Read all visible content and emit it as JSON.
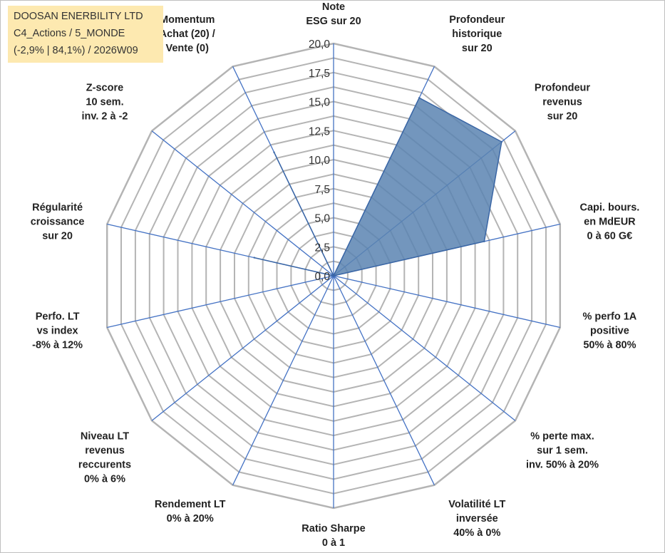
{
  "header": {
    "company": "DOOSAN ENERBILITY LTD",
    "category": "C4_Actions / 5_MONDE",
    "stats": "(-2,9% | 84,1%) / 2026W09"
  },
  "colors": {
    "fill": "#5b84b1",
    "series_line": "#3a66a5",
    "grid": "#b4b4b4",
    "spokes": "#4472c4"
  },
  "chart_data": {
    "type": "radar",
    "title": "",
    "rmin": 0,
    "rmax": 20,
    "ticks": [
      "0,0",
      "2,5",
      "5,0",
      "7,5",
      "10,0",
      "12,5",
      "15,0",
      "17,5",
      "20,0"
    ],
    "axes": [
      {
        "label": [
          "Note",
          "ESG sur 20"
        ],
        "value": 0
      },
      {
        "label": [
          "Profondeur",
          "historique",
          "sur 20"
        ],
        "value": 17.0
      },
      {
        "label": [
          "Profondeur",
          "revenus",
          "sur 20"
        ],
        "value": 18.5
      },
      {
        "label": [
          "Capi. bours.",
          "en MdEUR",
          "0 à 60 G€"
        ],
        "value": 13.3
      },
      {
        "label": [
          "% perfo 1A",
          "positive",
          "50% à 80%"
        ],
        "value": 0
      },
      {
        "label": [
          "% perte max.",
          "sur 1 sem.",
          "inv. 50% à 20%"
        ],
        "value": 0
      },
      {
        "label": [
          "Volatilité LT",
          "inversée",
          "40% à 0%"
        ],
        "value": 0
      },
      {
        "label": [
          "Ratio Sharpe",
          "0 à 1"
        ],
        "value": 0
      },
      {
        "label": [
          "Rendement LT",
          "0% à 20%"
        ],
        "value": 0
      },
      {
        "label": [
          "Niveau LT",
          "revenus",
          "reccurents",
          "0% à 6%"
        ],
        "value": 0
      },
      {
        "label": [
          "Perfo. LT",
          "vs index",
          "-8% à 12%"
        ],
        "value": 0
      },
      {
        "label": [
          "Régularité",
          "croissance",
          "sur 20"
        ],
        "value": 7.0
      },
      {
        "label": [
          "Z-score",
          "10 sem.",
          "inv. 2 à -2"
        ],
        "value": 0
      },
      {
        "label": [
          "Momentum",
          "Achat (20) /",
          "Vente (0)"
        ],
        "value": 11.8
      }
    ]
  }
}
